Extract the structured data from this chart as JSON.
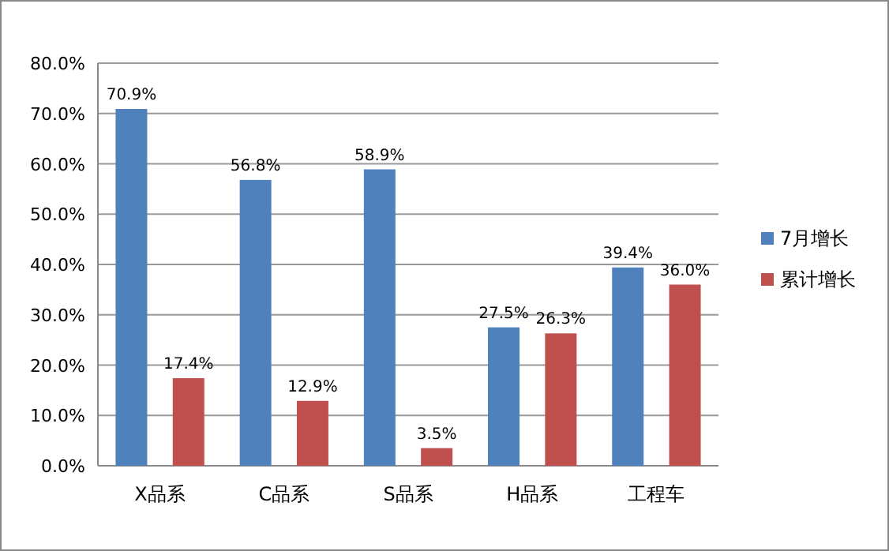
{
  "chart_data": {
    "type": "bar",
    "categories": [
      "X品系",
      "C品系",
      "S品系",
      "H品系",
      "工程车"
    ],
    "series": [
      {
        "name": "7月增长",
        "color": "#4f81bd",
        "values": [
          70.9,
          56.8,
          58.9,
          27.5,
          39.4
        ],
        "value_labels": [
          "70.9%",
          "56.8%",
          "58.9%",
          "27.5%",
          "39.4%"
        ]
      },
      {
        "name": "累计增长",
        "color": "#c0504d",
        "values": [
          17.4,
          12.9,
          3.5,
          26.3,
          36.0
        ],
        "value_labels": [
          "17.4%",
          "12.9%",
          "3.5%",
          "26.3%",
          "36.0%"
        ]
      }
    ],
    "ylim": [
      0,
      80
    ],
    "yticks": [
      {
        "value": 0,
        "label": "0.0%"
      },
      {
        "value": 10,
        "label": "10.0%"
      },
      {
        "value": 20,
        "label": "20.0%"
      },
      {
        "value": 30,
        "label": "30.0%"
      },
      {
        "value": 40,
        "label": "40.0%"
      },
      {
        "value": 50,
        "label": "50.0%"
      },
      {
        "value": 60,
        "label": "60.0%"
      },
      {
        "value": 70,
        "label": "70.0%"
      },
      {
        "value": 80,
        "label": "80.0%"
      }
    ],
    "grid": "y",
    "legend": "right"
  }
}
